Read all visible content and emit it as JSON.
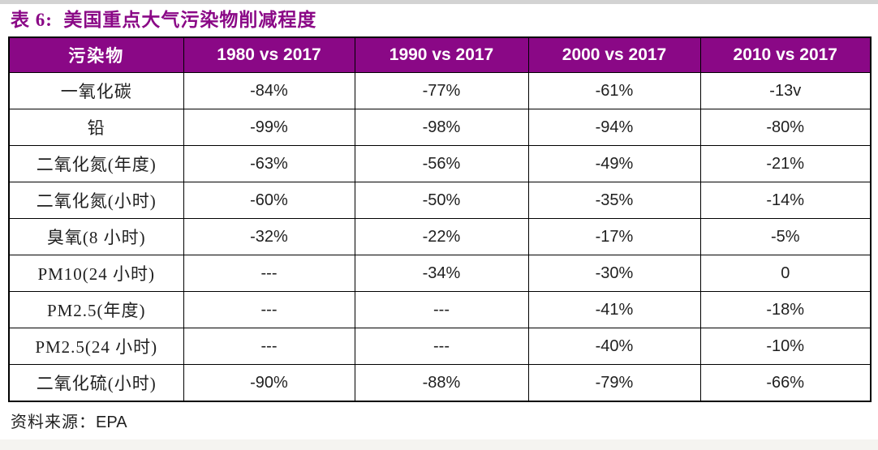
{
  "page": {
    "title": "表 6:  美国重点大气污染物削减程度",
    "source": {
      "label": "资料来源：",
      "value": "EPA"
    }
  },
  "colors": {
    "accent_purple": "#8a0886",
    "header_text": "#ffffff",
    "body_text": "#1f1f1f",
    "border": "#000000"
  },
  "chart_data": {
    "type": "table",
    "title": "表 6:  美国重点大气污染物削减程度",
    "columns": [
      "污染物",
      "1980 vs 2017",
      "1990 vs 2017",
      "2000 vs 2017",
      "2010 vs 2017"
    ],
    "rows": [
      [
        "一氧化碳",
        "-84%",
        "-77%",
        "-61%",
        "-13v"
      ],
      [
        "铅",
        "-99%",
        "-98%",
        "-94%",
        "-80%"
      ],
      [
        "二氧化氮(年度)",
        "-63%",
        "-56%",
        "-49%",
        "-21%"
      ],
      [
        "二氧化氮(小时)",
        "-60%",
        "-50%",
        "-35%",
        "-14%"
      ],
      [
        "臭氧(8 小时)",
        "-32%",
        "-22%",
        "-17%",
        "-5%"
      ],
      [
        "PM10(24 小时)",
        "---",
        "-34%",
        "-30%",
        "0"
      ],
      [
        "PM2.5(年度)",
        "---",
        "---",
        "-41%",
        "-18%"
      ],
      [
        "PM2.5(24 小时)",
        "---",
        "---",
        "-40%",
        "-10%"
      ],
      [
        "二氧化硫(小时)",
        "-90%",
        "-88%",
        "-79%",
        "-66%"
      ]
    ],
    "source": "资料来源：EPA"
  }
}
